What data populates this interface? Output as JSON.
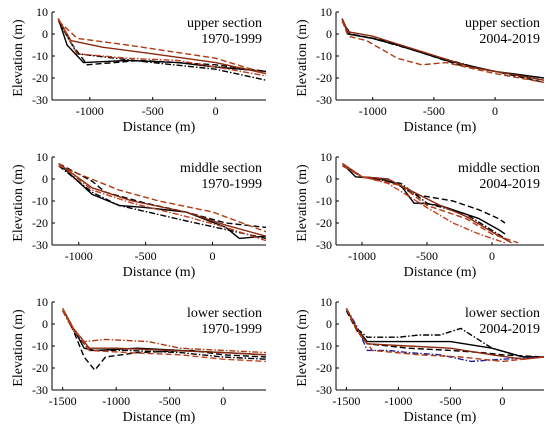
{
  "chart_data": [
    {
      "type": "line",
      "annotation": [
        "upper section",
        "1970-1999"
      ],
      "xlabel": "Distance (m)",
      "ylabel": "Elevation (m)",
      "xlim": [
        -1300,
        400
      ],
      "ylim": [
        -30,
        10
      ],
      "xticks": [
        -1000,
        -500,
        0
      ],
      "yticks": [
        10,
        0,
        -10,
        -20,
        -30
      ],
      "series": [
        {
          "color": "#000000",
          "dash": "solid",
          "x": [
            -1250,
            -1180,
            -1050,
            -700,
            -300,
            0,
            400
          ],
          "y": [
            7,
            -5,
            -13,
            -12,
            -13,
            -15,
            -17
          ]
        },
        {
          "color": "#000000",
          "dash": "dash",
          "x": [
            -1250,
            -1150,
            -1020,
            -600,
            0,
            400
          ],
          "y": [
            7,
            -4,
            -14,
            -12,
            -14,
            -17
          ]
        },
        {
          "color": "#000000",
          "dash": "dashdot",
          "x": [
            -1250,
            -1100,
            -500,
            0,
            400
          ],
          "y": [
            6,
            -9,
            -13,
            -16,
            -21
          ]
        },
        {
          "color": "#8b2a10",
          "dash": "solid",
          "x": [
            -1250,
            -1150,
            -900,
            -500,
            0,
            400
          ],
          "y": [
            7,
            -3,
            -6,
            -9,
            -13,
            -18
          ]
        },
        {
          "color": "#b03a10",
          "dash": "dash",
          "x": [
            -1250,
            -1100,
            -700,
            0,
            400
          ],
          "y": [
            6,
            -2,
            -5,
            -11,
            -18
          ]
        },
        {
          "color": "#c04020",
          "dash": "dashdot",
          "x": [
            -1250,
            -1100,
            -700,
            -300,
            0,
            400
          ],
          "y": [
            7,
            -9,
            -11,
            -12,
            -15,
            -19
          ]
        }
      ]
    },
    {
      "type": "line",
      "annotation": [
        "upper section",
        "2004-2019"
      ],
      "xlabel": "Distance (m)",
      "ylabel": "Elevation (m)",
      "xlim": [
        -1300,
        400
      ],
      "ylim": [
        -30,
        10
      ],
      "xticks": [
        -1000,
        -500,
        0
      ],
      "yticks": [
        10,
        0,
        -10,
        -20,
        -30
      ],
      "series": [
        {
          "color": "#000000",
          "dash": "solid",
          "x": [
            -1250,
            -1200,
            -1000,
            -800,
            -400,
            0,
            400
          ],
          "y": [
            7,
            0,
            -2,
            -5,
            -12,
            -17,
            -20
          ]
        },
        {
          "color": "#000000",
          "dash": "dashdot",
          "x": [
            -1250,
            -1200,
            -1000,
            -500,
            -100,
            400
          ],
          "y": [
            7,
            0,
            -2,
            -10,
            -16,
            -21
          ]
        },
        {
          "color": "#000000",
          "dash": "dash",
          "x": [
            -1250,
            -1180,
            -900,
            -300,
            0,
            400
          ],
          "y": [
            6,
            0,
            -3,
            -14,
            -17,
            -22
          ]
        },
        {
          "color": "#8b2a10",
          "dash": "solid",
          "x": [
            -1250,
            -1200,
            -1000,
            -600,
            -200,
            0,
            400
          ],
          "y": [
            7,
            1,
            -1,
            -8,
            -15,
            -17,
            -21
          ]
        },
        {
          "color": "#b03a10",
          "dash": "dash",
          "x": [
            -1250,
            -1200,
            -1050,
            -800,
            -600,
            -400,
            0,
            400
          ],
          "y": [
            6,
            -1,
            -3,
            -11,
            -14,
            -13,
            -18,
            -22
          ]
        }
      ]
    },
    {
      "type": "line",
      "annotation": [
        "middle section",
        "1970-1999"
      ],
      "xlabel": "Distance (m)",
      "ylabel": "Elevation (m)",
      "xlim": [
        -1200,
        400
      ],
      "ylim": [
        -30,
        10
      ],
      "xticks": [
        -1000,
        -500,
        0
      ],
      "yticks": [
        10,
        0,
        -10,
        -20,
        -30
      ],
      "series": [
        {
          "color": "#000000",
          "dash": "solid",
          "x": [
            -1150,
            -900,
            -700,
            -500,
            -200,
            100,
            200,
            400
          ],
          "y": [
            7,
            -7,
            -12,
            -13,
            -15,
            -22,
            -27,
            -26
          ]
        },
        {
          "color": "#000000",
          "dash": "dash",
          "x": [
            -1150,
            -900,
            -800,
            -500,
            -200,
            100,
            400
          ],
          "y": [
            7,
            -1,
            -6,
            -11,
            -15,
            -20,
            -22
          ]
        },
        {
          "color": "#000000",
          "dash": "dashdot",
          "x": [
            -1150,
            -900,
            -700,
            -200,
            100,
            400
          ],
          "y": [
            6,
            -6,
            -12,
            -19,
            -23,
            -27
          ]
        },
        {
          "color": "#8b2a10",
          "dash": "solid",
          "x": [
            -1150,
            -900,
            -600,
            -200,
            100,
            400
          ],
          "y": [
            7,
            -4,
            -10,
            -15,
            -21,
            -26
          ]
        },
        {
          "color": "#b03a10",
          "dash": "dash",
          "x": [
            -1150,
            -700,
            -400,
            0,
            400
          ],
          "y": [
            6,
            -5,
            -10,
            -15,
            -24
          ]
        },
        {
          "color": "#c04020",
          "dash": "dashdot",
          "x": [
            -1150,
            -900,
            -600,
            -200,
            100,
            400
          ],
          "y": [
            7,
            -5,
            -11,
            -17,
            -22,
            -28
          ]
        }
      ]
    },
    {
      "type": "line",
      "annotation": [
        "middle section",
        "2004-2019"
      ],
      "xlabel": "Distance (m)",
      "ylabel": "Elevation (m)",
      "xlim": [
        -1200,
        400
      ],
      "ylim": [
        -30,
        10
      ],
      "xticks": [
        -1000,
        -500,
        0
      ],
      "yticks": [
        10,
        0,
        -10,
        -20,
        -30
      ],
      "series": [
        {
          "color": "#000000",
          "dash": "solid",
          "x": [
            -1150,
            -1050,
            -850,
            -700,
            -600,
            -550,
            -400,
            -100,
            50,
            100
          ],
          "y": [
            7,
            1,
            0,
            -3,
            -11,
            -11,
            -12,
            -18,
            -23,
            -25
          ]
        },
        {
          "color": "#000000",
          "dash": "dash",
          "x": [
            -1150,
            -1000,
            -800,
            -600,
            -300,
            -100,
            50,
            100
          ],
          "y": [
            7,
            1,
            0,
            -7,
            -10,
            -14,
            -18,
            -20
          ]
        },
        {
          "color": "#000000",
          "dash": "dashdot",
          "x": [
            -1150,
            -1000,
            -700,
            -500,
            -200,
            100
          ],
          "y": [
            6,
            1,
            -2,
            -11,
            -16,
            -27
          ]
        },
        {
          "color": "#8b2a10",
          "dash": "solid",
          "x": [
            -1150,
            -1000,
            -800,
            -600,
            -400,
            -200,
            0,
            150
          ],
          "y": [
            7,
            1,
            0,
            -6,
            -12,
            -17,
            -24,
            -29
          ]
        },
        {
          "color": "#b03a10",
          "dash": "dash",
          "x": [
            -1150,
            -1000,
            -700,
            -500,
            -200,
            0,
            200
          ],
          "y": [
            6,
            1,
            -3,
            -12,
            -18,
            -25,
            -29
          ]
        },
        {
          "color": "#c04020",
          "dash": "dashdot",
          "x": [
            -1150,
            -1000,
            -800,
            -500,
            -300,
            -100,
            100
          ],
          "y": [
            7,
            1,
            -2,
            -13,
            -20,
            -25,
            -29
          ]
        }
      ]
    },
    {
      "type": "line",
      "annotation": [
        "lower section",
        "1970-1999"
      ],
      "xlabel": "Distance (m)",
      "ylabel": "Elevation (m)",
      "xlim": [
        -1600,
        400
      ],
      "ylim": [
        -30,
        10
      ],
      "xticks": [
        -1500,
        -1000,
        -500,
        0
      ],
      "yticks": [
        10,
        0,
        -10,
        -20,
        -30
      ],
      "series": [
        {
          "color": "#000000",
          "dash": "solid",
          "x": [
            -1500,
            -1400,
            -1300,
            -1200,
            -800,
            -400,
            0,
            400
          ],
          "y": [
            7,
            -2,
            -11,
            -12,
            -11,
            -12,
            -13,
            -14
          ]
        },
        {
          "color": "#000000",
          "dash": "dash",
          "x": [
            -1500,
            -1400,
            -1300,
            -1200,
            -1100,
            -800,
            -300,
            0,
            400
          ],
          "y": [
            7,
            -3,
            -15,
            -21,
            -15,
            -13,
            -12,
            -14,
            -15
          ]
        },
        {
          "color": "#000000",
          "dash": "dashdot",
          "x": [
            -1500,
            -1400,
            -1250,
            -900,
            -400,
            0,
            400
          ],
          "y": [
            6,
            -3,
            -12,
            -12,
            -13,
            -15,
            -16
          ]
        },
        {
          "color": "#8b2a10",
          "dash": "solid",
          "x": [
            -1500,
            -1400,
            -1250,
            -1000,
            -500,
            0,
            400
          ],
          "y": [
            7,
            -2,
            -11,
            -11,
            -12,
            -13,
            -14
          ]
        },
        {
          "color": "#b03a10",
          "dash": "dashdot",
          "x": [
            -1500,
            -1400,
            -1300,
            -1100,
            -700,
            -400,
            0,
            400
          ],
          "y": [
            6,
            -3,
            -8,
            -7,
            -8,
            -11,
            -12,
            -13
          ]
        },
        {
          "color": "#c04020",
          "dash": "dash",
          "x": [
            -1500,
            -1400,
            -1250,
            -900,
            -400,
            0,
            400
          ],
          "y": [
            7,
            -2,
            -12,
            -13,
            -14,
            -16,
            -17
          ]
        }
      ]
    },
    {
      "type": "line",
      "annotation": [
        "lower section",
        "2004-2019"
      ],
      "xlabel": "Distance (m)",
      "ylabel": "Elevation (m)",
      "xlim": [
        -1600,
        400
      ],
      "ylim": [
        -30,
        10
      ],
      "xticks": [
        -1500,
        -1000,
        -500,
        0
      ],
      "yticks": [
        10,
        0,
        -10,
        -20,
        -30
      ],
      "series": [
        {
          "color": "#000000",
          "dash": "solid",
          "x": [
            -1500,
            -1400,
            -1300,
            -900,
            -500,
            -100,
            200,
            400
          ],
          "y": [
            7,
            -2,
            -8,
            -8,
            -8,
            -11,
            -15,
            -15
          ]
        },
        {
          "color": "#000000",
          "dash": "dashdot",
          "x": [
            -1500,
            -1400,
            -1300,
            -1000,
            -800,
            -600,
            -400,
            -100,
            200,
            400
          ],
          "y": [
            7,
            -2,
            -6,
            -6,
            -5,
            -5,
            -2,
            -11,
            -15,
            -15
          ]
        },
        {
          "color": "#000000",
          "dash": "dash",
          "x": [
            -1500,
            -1400,
            -1300,
            -900,
            -500,
            -200,
            0,
            400
          ],
          "y": [
            6,
            -3,
            -9,
            -11,
            -12,
            -13,
            -14,
            -15
          ]
        },
        {
          "color": "#2020a0",
          "dash": "dashdot",
          "x": [
            -1500,
            -1400,
            -1300,
            -1100,
            -900,
            -600,
            -300,
            0,
            400
          ],
          "y": [
            7,
            -1,
            -12,
            -12,
            -13,
            -14,
            -17,
            -16,
            -15
          ]
        },
        {
          "color": "#8b2a10",
          "dash": "solid",
          "x": [
            -1500,
            -1400,
            -1300,
            -900,
            -500,
            -100,
            200,
            400
          ],
          "y": [
            7,
            -2,
            -9,
            -10,
            -11,
            -14,
            -16,
            -15
          ]
        },
        {
          "color": "#b03a10",
          "dash": "dash",
          "x": [
            -1500,
            -1400,
            -1250,
            -800,
            -400,
            0,
            400
          ],
          "y": [
            7,
            -3,
            -12,
            -14,
            -15,
            -17,
            -15
          ]
        }
      ]
    }
  ]
}
